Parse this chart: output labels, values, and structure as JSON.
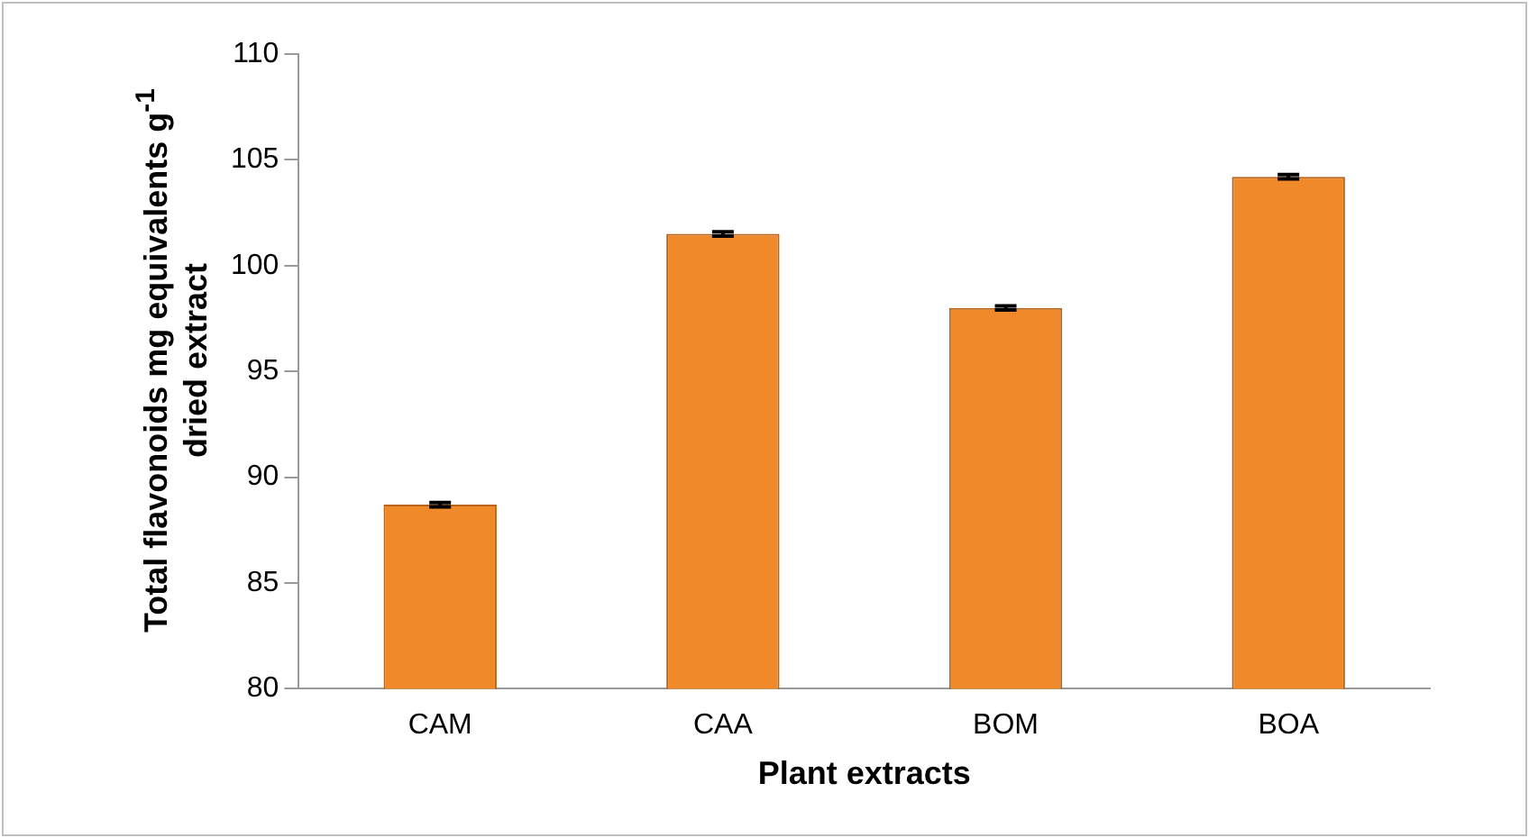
{
  "chart_data": {
    "type": "bar",
    "xlabel": "Plant extracts",
    "ylabel": "Total flavonoids mg equivalents g$^{-1}$ dried extract",
    "categories": [
      "CAM",
      "CAA",
      "BOM",
      "BOA"
    ],
    "values": [
      88.7,
      101.5,
      98.0,
      104.2
    ],
    "errors": [
      0.1,
      0.1,
      0.1,
      0.1
    ],
    "color": "#f0892a",
    "ylim": [
      80,
      110
    ],
    "yticks": [
      80,
      85,
      90,
      95,
      100,
      105,
      110
    ],
    "grid": false,
    "legend": false
  }
}
